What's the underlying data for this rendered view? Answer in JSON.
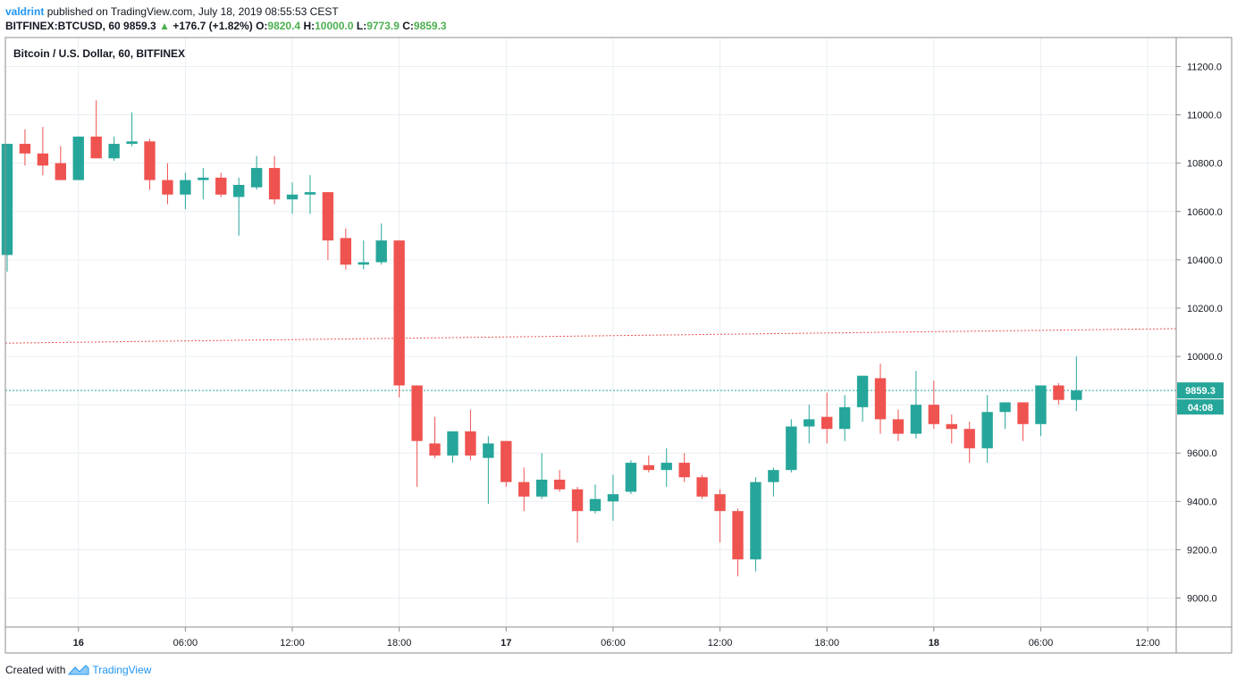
{
  "header": {
    "author": "valdrint",
    "published_text": "published on TradingView.com, July 18, 2019 08:55:53 CEST",
    "symbol": "BITFINEX:BTCUSD, 60",
    "last_price": "9859.3",
    "change_arrow": "▲",
    "change": "+176.7 (+1.82%)",
    "o_label": "O:",
    "o_value": "9820.4",
    "h_label": "H:",
    "h_value": "10000.0",
    "l_label": "L:",
    "l_value": "9773.9",
    "c_label": "C:",
    "c_value": "9859.3"
  },
  "footer": {
    "created_with": "Created with",
    "brand": "TradingView"
  },
  "colors": {
    "up": "#26a69a",
    "down": "#ef5350",
    "grid": "#e9eef2",
    "border": "#8e8e8e",
    "current_line": "#26a69a",
    "resistance_line": "#ef5350",
    "price_badge": "#26a69a"
  },
  "chart_data": {
    "type": "candlestick",
    "title": "Bitcoin / U.S. Dollar, 60, BITFINEX",
    "ylim": [
      8880,
      11320
    ],
    "y_ticks": [
      9000,
      9200,
      9400,
      9600,
      9800,
      10000,
      10200,
      10400,
      10600,
      10800,
      11000,
      11200
    ],
    "y_tick_labels": [
      "9000.0",
      "9200.0",
      "9400.0",
      "9600.0",
      "9800.0",
      "10000.0",
      "10200.0",
      "10400.0",
      "10600.0",
      "10800.0",
      "11000.0",
      "11200.0"
    ],
    "x_ticks": [
      {
        "t": 3,
        "label": "16"
      },
      {
        "t": 9,
        "label": "06:00"
      },
      {
        "t": 15,
        "label": "12:00"
      },
      {
        "t": 21,
        "label": "18:00"
      },
      {
        "t": 27,
        "label": "17"
      },
      {
        "t": 33,
        "label": "06:00"
      },
      {
        "t": 39,
        "label": "12:00"
      },
      {
        "t": 45,
        "label": "18:00"
      },
      {
        "t": 51,
        "label": "18"
      },
      {
        "t": 57,
        "label": "06:00"
      },
      {
        "t": 63,
        "label": "12:00"
      }
    ],
    "t_range": [
      -1.1,
      64.6
    ],
    "candles": [
      {
        "t": -1,
        "o": 10420,
        "h": 10880,
        "l": 10350,
        "c": 10880
      },
      {
        "t": 0,
        "o": 10880,
        "h": 10940,
        "l": 10790,
        "c": 10840
      },
      {
        "t": 1,
        "o": 10840,
        "h": 10950,
        "l": 10750,
        "c": 10790
      },
      {
        "t": 2,
        "o": 10800,
        "h": 10870,
        "l": 10730,
        "c": 10730
      },
      {
        "t": 3,
        "o": 10730,
        "h": 10910,
        "l": 10730,
        "c": 10910
      },
      {
        "t": 4,
        "o": 10910,
        "h": 11060,
        "l": 10820,
        "c": 10820
      },
      {
        "t": 5,
        "o": 10820,
        "h": 10910,
        "l": 10810,
        "c": 10880
      },
      {
        "t": 6,
        "o": 10880,
        "h": 11010,
        "l": 10870,
        "c": 10890
      },
      {
        "t": 7,
        "o": 10890,
        "h": 10900,
        "l": 10690,
        "c": 10730
      },
      {
        "t": 8,
        "o": 10730,
        "h": 10800,
        "l": 10630,
        "c": 10670
      },
      {
        "t": 9,
        "o": 10670,
        "h": 10760,
        "l": 10610,
        "c": 10730
      },
      {
        "t": 10,
        "o": 10730,
        "h": 10780,
        "l": 10650,
        "c": 10740
      },
      {
        "t": 11,
        "o": 10740,
        "h": 10760,
        "l": 10660,
        "c": 10670
      },
      {
        "t": 12,
        "o": 10660,
        "h": 10740,
        "l": 10500,
        "c": 10710
      },
      {
        "t": 13,
        "o": 10700,
        "h": 10830,
        "l": 10690,
        "c": 10780
      },
      {
        "t": 14,
        "o": 10780,
        "h": 10830,
        "l": 10630,
        "c": 10650
      },
      {
        "t": 15,
        "o": 10650,
        "h": 10720,
        "l": 10590,
        "c": 10670
      },
      {
        "t": 16,
        "o": 10670,
        "h": 10750,
        "l": 10590,
        "c": 10680
      },
      {
        "t": 17,
        "o": 10680,
        "h": 10680,
        "l": 10400,
        "c": 10480
      },
      {
        "t": 18,
        "o": 10490,
        "h": 10530,
        "l": 10360,
        "c": 10380
      },
      {
        "t": 19,
        "o": 10380,
        "h": 10480,
        "l": 10360,
        "c": 10390
      },
      {
        "t": 20,
        "o": 10390,
        "h": 10550,
        "l": 10380,
        "c": 10480
      },
      {
        "t": 21,
        "o": 10480,
        "h": 10480,
        "l": 9830,
        "c": 9880
      },
      {
        "t": 22,
        "o": 9880,
        "h": 9880,
        "l": 9460,
        "c": 9650
      },
      {
        "t": 23,
        "o": 9640,
        "h": 9750,
        "l": 9580,
        "c": 9590
      },
      {
        "t": 24,
        "o": 9590,
        "h": 9690,
        "l": 9560,
        "c": 9690
      },
      {
        "t": 25,
        "o": 9690,
        "h": 9780,
        "l": 9570,
        "c": 9590
      },
      {
        "t": 26,
        "o": 9580,
        "h": 9670,
        "l": 9390,
        "c": 9640
      },
      {
        "t": 27,
        "o": 9650,
        "h": 9650,
        "l": 9460,
        "c": 9480
      },
      {
        "t": 28,
        "o": 9480,
        "h": 9540,
        "l": 9360,
        "c": 9420
      },
      {
        "t": 29,
        "o": 9420,
        "h": 9600,
        "l": 9410,
        "c": 9490
      },
      {
        "t": 30,
        "o": 9490,
        "h": 9530,
        "l": 9440,
        "c": 9450
      },
      {
        "t": 31,
        "o": 9450,
        "h": 9460,
        "l": 9230,
        "c": 9360
      },
      {
        "t": 32,
        "o": 9360,
        "h": 9470,
        "l": 9350,
        "c": 9410
      },
      {
        "t": 33,
        "o": 9400,
        "h": 9510,
        "l": 9320,
        "c": 9430
      },
      {
        "t": 34,
        "o": 9440,
        "h": 9570,
        "l": 9430,
        "c": 9560
      },
      {
        "t": 35,
        "o": 9550,
        "h": 9590,
        "l": 9520,
        "c": 9530
      },
      {
        "t": 36,
        "o": 9530,
        "h": 9620,
        "l": 9460,
        "c": 9560
      },
      {
        "t": 37,
        "o": 9560,
        "h": 9600,
        "l": 9480,
        "c": 9500
      },
      {
        "t": 38,
        "o": 9500,
        "h": 9510,
        "l": 9410,
        "c": 9420
      },
      {
        "t": 39,
        "o": 9430,
        "h": 9450,
        "l": 9230,
        "c": 9360
      },
      {
        "t": 40,
        "o": 9360,
        "h": 9370,
        "l": 9090,
        "c": 9160
      },
      {
        "t": 41,
        "o": 9160,
        "h": 9500,
        "l": 9110,
        "c": 9480
      },
      {
        "t": 42,
        "o": 9480,
        "h": 9540,
        "l": 9420,
        "c": 9530
      },
      {
        "t": 43,
        "o": 9530,
        "h": 9740,
        "l": 9520,
        "c": 9710
      },
      {
        "t": 44,
        "o": 9710,
        "h": 9800,
        "l": 9640,
        "c": 9740
      },
      {
        "t": 45,
        "o": 9750,
        "h": 9850,
        "l": 9640,
        "c": 9700
      },
      {
        "t": 46,
        "o": 9700,
        "h": 9840,
        "l": 9650,
        "c": 9790
      },
      {
        "t": 47,
        "o": 9790,
        "h": 9920,
        "l": 9730,
        "c": 9920
      },
      {
        "t": 48,
        "o": 9910,
        "h": 9970,
        "l": 9680,
        "c": 9740
      },
      {
        "t": 49,
        "o": 9740,
        "h": 9780,
        "l": 9650,
        "c": 9680
      },
      {
        "t": 50,
        "o": 9680,
        "h": 9940,
        "l": 9660,
        "c": 9800
      },
      {
        "t": 51,
        "o": 9800,
        "h": 9900,
        "l": 9700,
        "c": 9720
      },
      {
        "t": 52,
        "o": 9720,
        "h": 9760,
        "l": 9640,
        "c": 9700
      },
      {
        "t": 53,
        "o": 9700,
        "h": 9730,
        "l": 9560,
        "c": 9620
      },
      {
        "t": 54,
        "o": 9620,
        "h": 9840,
        "l": 9560,
        "c": 9770
      },
      {
        "t": 55,
        "o": 9770,
        "h": 9810,
        "l": 9700,
        "c": 9810
      },
      {
        "t": 56,
        "o": 9810,
        "h": 9810,
        "l": 9650,
        "c": 9720
      },
      {
        "t": 57,
        "o": 9720,
        "h": 9880,
        "l": 9670,
        "c": 9880
      },
      {
        "t": 58,
        "o": 9880,
        "h": 9890,
        "l": 9800,
        "c": 9820
      },
      {
        "t": 59,
        "o": 9820,
        "h": 10000,
        "l": 9774,
        "c": 9859
      }
    ],
    "current_price": 9859.3,
    "current_price_label": "9859.3",
    "countdown_label": "04:08",
    "resistance_line": {
      "from": {
        "t": -1.1,
        "price": 10055
      },
      "to": {
        "t": 64.6,
        "price": 10115
      }
    }
  }
}
